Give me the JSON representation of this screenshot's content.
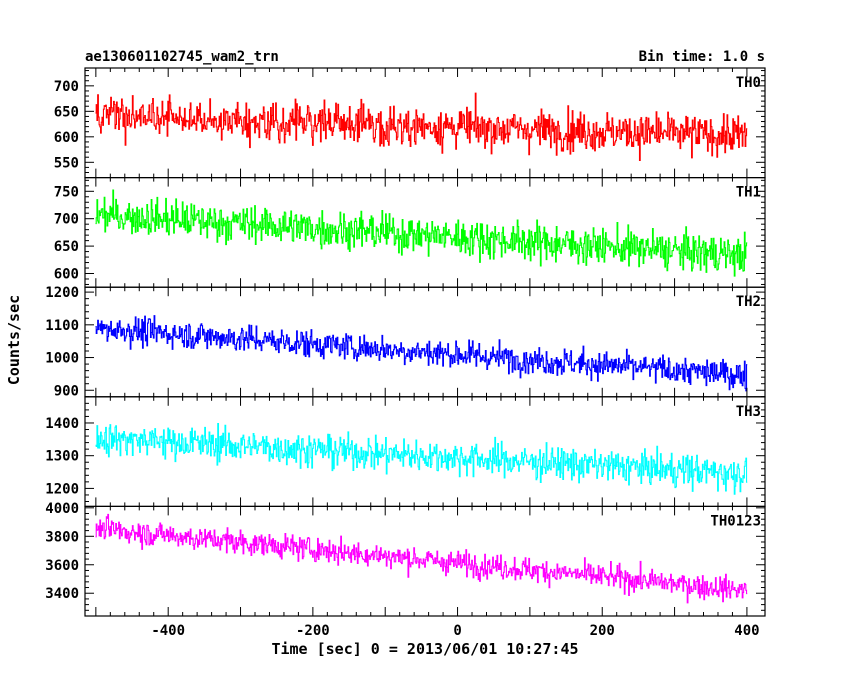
{
  "header": {
    "title": "ae130601102745_wam2_trn",
    "bin_time": "Bin time: 1.0 s"
  },
  "xlabel": "Time [sec] 0 = 2013/06/01 10:27:45",
  "ylabel": "Counts/sec",
  "chart_data": [
    {
      "type": "line",
      "name": "TH0",
      "color": "#ff0000",
      "xlim": [
        -515,
        425
      ],
      "ylim": [
        520,
        735
      ],
      "yticks": [
        550,
        600,
        650,
        700
      ],
      "x_range": [
        -500,
        400
      ],
      "bin": 1,
      "trend": [
        [
          -500,
          640
        ],
        [
          400,
          602
        ]
      ],
      "noise": 32,
      "points": [
        [
          -500,
          640
        ],
        [
          -460,
          634
        ],
        [
          -400,
          630
        ],
        [
          -300,
          625
        ],
        [
          -200,
          622
        ],
        [
          -100,
          620
        ],
        [
          0,
          615
        ],
        [
          100,
          612
        ],
        [
          200,
          608
        ],
        [
          300,
          605
        ],
        [
          400,
          602
        ]
      ]
    },
    {
      "type": "line",
      "name": "TH1",
      "color": "#00ff00",
      "xlim": [
        -515,
        425
      ],
      "ylim": [
        575,
        775
      ],
      "yticks": [
        600,
        650,
        700,
        750
      ],
      "x_range": [
        -500,
        400
      ],
      "bin": 1,
      "trend": [
        [
          -500,
          708
        ],
        [
          400,
          633
        ]
      ],
      "noise": 28,
      "points": [
        [
          -500,
          708
        ],
        [
          -400,
          700
        ],
        [
          -300,
          692
        ],
        [
          -200,
          683
        ],
        [
          -100,
          675
        ],
        [
          0,
          667
        ],
        [
          100,
          658
        ],
        [
          200,
          650
        ],
        [
          300,
          642
        ],
        [
          400,
          633
        ]
      ]
    },
    {
      "type": "line",
      "name": "TH2",
      "color": "#0000ff",
      "xlim": [
        -515,
        425
      ],
      "ylim": [
        880,
        1215
      ],
      "yticks": [
        900,
        1000,
        1100,
        1200
      ],
      "x_range": [
        -500,
        400
      ],
      "bin": 1,
      "trend": [
        [
          -500,
          1090
        ],
        [
          400,
          945
        ]
      ],
      "noise": 35,
      "points": [
        [
          -500,
          1090
        ],
        [
          -400,
          1074
        ],
        [
          -300,
          1058
        ],
        [
          -200,
          1042
        ],
        [
          -100,
          1026
        ],
        [
          0,
          1010
        ],
        [
          100,
          993
        ],
        [
          200,
          977
        ],
        [
          300,
          961
        ],
        [
          400,
          945
        ]
      ]
    },
    {
      "type": "line",
      "name": "TH3",
      "color": "#00ffff",
      "xlim": [
        -515,
        425
      ],
      "ylim": [
        1145,
        1480
      ],
      "yticks": [
        1200,
        1300,
        1400
      ],
      "x_range": [
        -500,
        400
      ],
      "bin": 1,
      "trend": [
        [
          -500,
          1355
        ],
        [
          400,
          1245
        ]
      ],
      "noise": 42,
      "points": [
        [
          -500,
          1355
        ],
        [
          -400,
          1343
        ],
        [
          -300,
          1331
        ],
        [
          -200,
          1318
        ],
        [
          -100,
          1306
        ],
        [
          0,
          1294
        ],
        [
          100,
          1282
        ],
        [
          200,
          1270
        ],
        [
          300,
          1257
        ],
        [
          400,
          1245
        ]
      ]
    },
    {
      "type": "line",
      "name": "TH0123",
      "color": "#ff00ff",
      "xlim": [
        -515,
        425
      ],
      "ylim": [
        3240,
        4010
      ],
      "yticks": [
        3400,
        3600,
        3800,
        4000
      ],
      "xticks": [
        -400,
        -200,
        0,
        200,
        400
      ],
      "x_range": [
        -500,
        400
      ],
      "bin": 1,
      "trend": [
        [
          -500,
          3855
        ],
        [
          400,
          3420
        ]
      ],
      "noise": 70,
      "points": [
        [
          -500,
          3855
        ],
        [
          -400,
          3807
        ],
        [
          -300,
          3758
        ],
        [
          -200,
          3710
        ],
        [
          -100,
          3662
        ],
        [
          0,
          3613
        ],
        [
          100,
          3565
        ],
        [
          200,
          3517
        ],
        [
          300,
          3468
        ],
        [
          400,
          3420
        ]
      ]
    }
  ]
}
